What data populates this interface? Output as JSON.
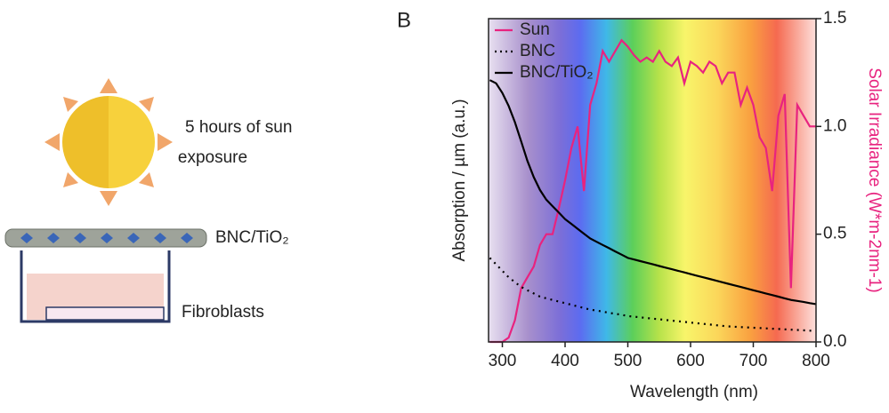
{
  "panel_label": "B",
  "diagram": {
    "sun_caption": [
      "5 hours of sun",
      "exposure"
    ],
    "material_label": "BNC/TiO₂",
    "cells_label": "Fibroblasts"
  },
  "chart_data": {
    "type": "line",
    "xlabel": "Wavelength (nm)",
    "ylabel": "Absorption / µm (a.u.)",
    "y2label": "Solar Irradiance (W*m-2nm-1)",
    "xlim": [
      278,
      800
    ],
    "xticks": [
      300,
      400,
      500,
      600,
      700,
      800
    ],
    "ylim": [
      0,
      1
    ],
    "y2lim": [
      0,
      1.5
    ],
    "y2ticks": [
      {
        "value": 0,
        "label": "0.0"
      },
      0.5,
      {
        "value": 1,
        "label": "1.0"
      },
      1.5
    ],
    "legend": "upper left",
    "x": [
      280,
      290,
      300,
      310,
      320,
      330,
      340,
      350,
      360,
      370,
      380,
      390,
      400,
      410,
      420,
      430,
      440,
      450,
      460,
      470,
      480,
      490,
      500,
      510,
      520,
      530,
      540,
      550,
      560,
      570,
      580,
      590,
      600,
      610,
      620,
      630,
      640,
      650,
      660,
      670,
      680,
      690,
      700,
      710,
      720,
      730,
      740,
      750,
      760,
      770,
      780,
      790,
      800
    ],
    "series": [
      {
        "name": "Sun",
        "color": "#e8237f",
        "style": "solid",
        "axis": "y2",
        "values": [
          0,
          0,
          0,
          0.02,
          0.1,
          0.25,
          0.3,
          0.35,
          0.45,
          0.5,
          0.5,
          0.62,
          0.75,
          0.9,
          1.0,
          0.7,
          1.1,
          1.2,
          1.35,
          1.3,
          1.35,
          1.4,
          1.37,
          1.33,
          1.3,
          1.32,
          1.3,
          1.35,
          1.3,
          1.28,
          1.32,
          1.2,
          1.3,
          1.28,
          1.25,
          1.3,
          1.28,
          1.2,
          1.25,
          1.25,
          1.1,
          1.18,
          1.1,
          0.95,
          0.9,
          0.7,
          1.05,
          1.15,
          0.25,
          1.1,
          1.05,
          1.0,
          1.0
        ]
      },
      {
        "name": "BNC",
        "color": "#000000",
        "style": "dotted",
        "values": [
          0.26,
          0.24,
          0.22,
          0.2,
          0.185,
          0.17,
          0.16,
          0.15,
          0.14,
          0.135,
          0.13,
          0.125,
          0.12,
          0.115,
          0.11,
          0.105,
          0.1,
          0.097,
          0.094,
          0.09,
          0.087,
          0.084,
          0.08,
          0.078,
          0.076,
          0.074,
          0.072,
          0.07,
          0.068,
          0.066,
          0.064,
          0.062,
          0.06,
          0.058,
          0.056,
          0.054,
          0.052,
          0.05,
          0.048,
          0.047,
          0.046,
          0.045,
          0.044,
          0.043,
          0.042,
          0.041,
          0.04,
          0.039,
          0.038,
          0.037,
          0.036,
          0.035,
          0.034
        ]
      },
      {
        "name": "BNC/TiO₂",
        "color": "#000000",
        "style": "solid",
        "values": [
          0.81,
          0.8,
          0.77,
          0.73,
          0.68,
          0.62,
          0.56,
          0.51,
          0.47,
          0.44,
          0.42,
          0.4,
          0.38,
          0.365,
          0.35,
          0.335,
          0.32,
          0.31,
          0.3,
          0.29,
          0.28,
          0.27,
          0.26,
          0.255,
          0.25,
          0.245,
          0.24,
          0.235,
          0.23,
          0.225,
          0.22,
          0.215,
          0.21,
          0.205,
          0.2,
          0.195,
          0.19,
          0.185,
          0.18,
          0.175,
          0.17,
          0.165,
          0.16,
          0.155,
          0.15,
          0.145,
          0.14,
          0.135,
          0.13,
          0.127,
          0.124,
          0.12,
          0.117
        ]
      }
    ]
  }
}
